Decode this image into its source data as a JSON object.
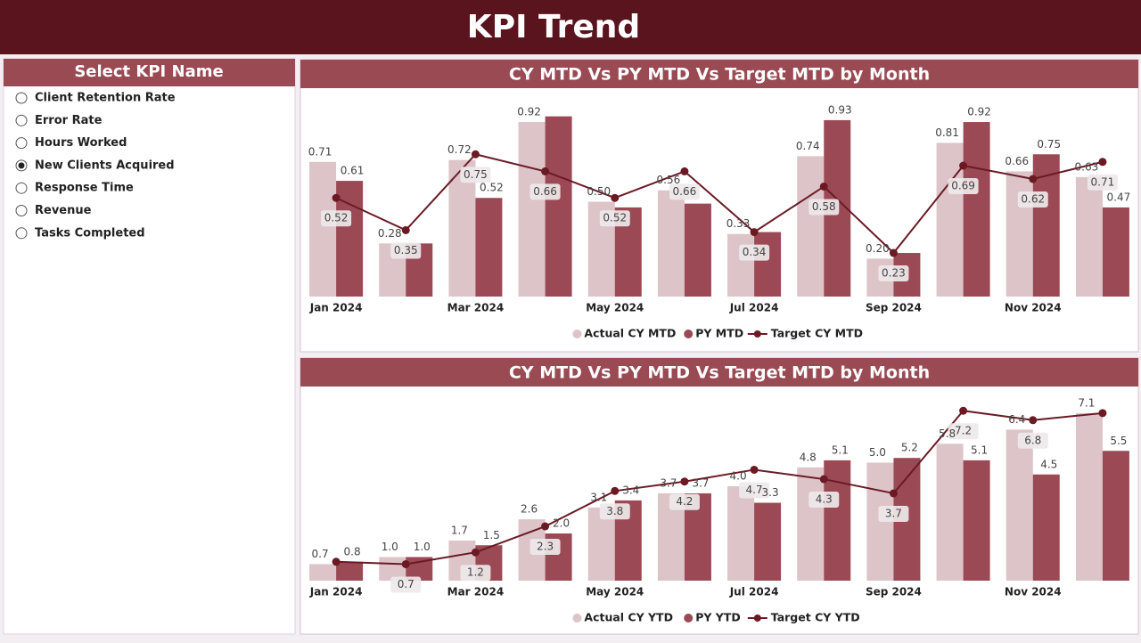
{
  "header": {
    "title": "KPI Trend"
  },
  "slicer": {
    "title": "Select KPI Name",
    "options": [
      "Client Retention Rate",
      "Error Rate",
      "Hours Worked",
      "New Clients Acquired",
      "Response Time",
      "Revenue",
      "Tasks Completed"
    ],
    "selected": 3
  },
  "chart_data": [
    {
      "type": "combo",
      "title": "CY MTD Vs PY MTD Vs Target MTD by Month",
      "categories": [
        "Jan 2024",
        null,
        "Mar 2024",
        null,
        "May 2024",
        null,
        "Jul 2024",
        null,
        "Sep 2024",
        null,
        "Nov 2024",
        null
      ],
      "ylim": [
        0,
        1
      ],
      "series": [
        {
          "name": "Actual CY MTD",
          "type": "bar",
          "color": "#dcc4c8",
          "values": [
            0.71,
            0.28,
            0.72,
            0.92,
            0.5,
            0.56,
            0.33,
            0.74,
            0.2,
            0.81,
            0.66,
            0.63
          ],
          "value_labels": [
            "0.71",
            "0.28",
            "0.72",
            "0.92",
            "0.50",
            "0.56",
            "0.33",
            "0.74",
            "0.20",
            "0.81",
            "0.66",
            "0.63"
          ]
        },
        {
          "name": "PY MTD",
          "type": "bar",
          "color": "#9b4a55",
          "values": [
            0.61,
            0.28,
            0.52,
            0.95,
            0.47,
            0.49,
            0.34,
            0.93,
            0.23,
            0.92,
            0.75,
            0.47
          ],
          "value_labels": [
            "0.61",
            null,
            "0.52",
            null,
            null,
            null,
            null,
            "0.93",
            null,
            "0.92",
            "0.75",
            "0.47"
          ]
        },
        {
          "name": "Target CY MTD",
          "type": "line",
          "color": "#6b1a24",
          "values": [
            0.52,
            0.35,
            0.75,
            0.66,
            0.52,
            0.66,
            0.34,
            0.58,
            0.23,
            0.69,
            0.62,
            0.71
          ],
          "value_labels": [
            "0.52",
            "0.35",
            "0.75",
            "0.66",
            "0.52",
            "0.66",
            "0.34",
            "0.58",
            "0.23",
            "0.69",
            "0.62",
            "0.71"
          ]
        }
      ]
    },
    {
      "type": "combo",
      "title": "CY MTD Vs PY MTD Vs Target MTD by Month",
      "categories": [
        "Jan 2024",
        null,
        "Mar 2024",
        null,
        "May 2024",
        null,
        "Jul 2024",
        null,
        "Sep 2024",
        null,
        "Nov 2024",
        null
      ],
      "ylim": [
        0,
        8
      ],
      "series": [
        {
          "name": "Actual CY YTD",
          "type": "bar",
          "color": "#dcc4c8",
          "values": [
            0.7,
            1.0,
            1.7,
            2.6,
            3.1,
            3.7,
            4.0,
            4.8,
            5.0,
            5.8,
            6.4,
            7.1
          ],
          "value_labels": [
            "0.7",
            "1.0",
            "1.7",
            "2.6",
            "3.1",
            "3.7",
            "4.0",
            "4.8",
            "5.0",
            "5.8",
            "6.4",
            "7.1"
          ]
        },
        {
          "name": "PY YTD",
          "type": "bar",
          "color": "#9b4a55",
          "values": [
            0.8,
            1.0,
            1.5,
            2.0,
            3.4,
            3.7,
            3.3,
            5.1,
            5.2,
            5.1,
            4.5,
            5.5
          ],
          "value_labels": [
            "0.8",
            "1.0",
            "1.5",
            "2.0",
            "3.4",
            "3.7",
            "3.3",
            "5.1",
            "5.2",
            "5.1",
            "4.5",
            "5.5"
          ]
        },
        {
          "name": "Target CY YTD",
          "type": "line",
          "color": "#6b1a24",
          "values": [
            0.8,
            0.7,
            1.2,
            2.3,
            3.8,
            4.2,
            4.7,
            4.3,
            3.7,
            7.2,
            6.8,
            7.1
          ],
          "value_labels": [
            null,
            "0.7",
            "1.2",
            "2.3",
            "3.8",
            "4.2",
            "4.7",
            "4.3",
            "3.7",
            "7.2",
            "6.8",
            null
          ]
        }
      ]
    }
  ]
}
